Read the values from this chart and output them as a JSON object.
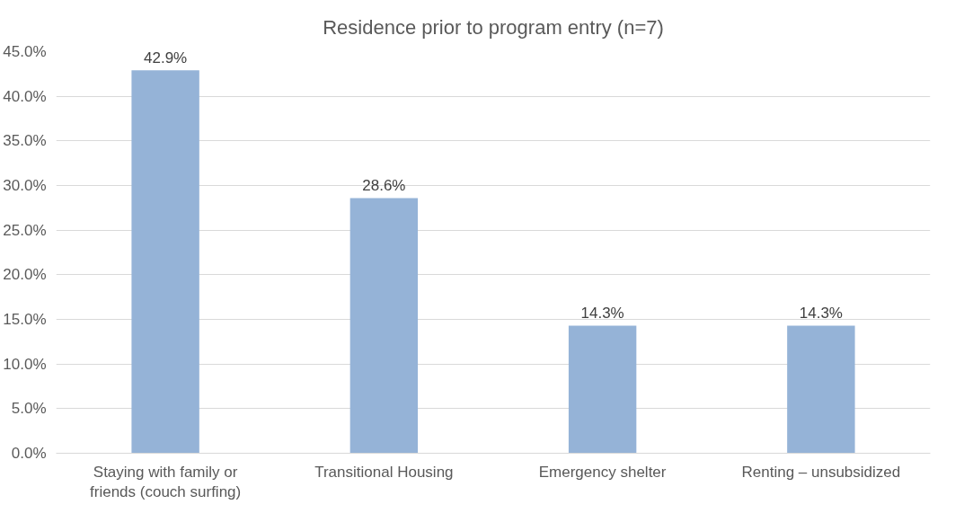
{
  "chart_data": {
    "type": "bar",
    "title": "Residence prior to program entry (n=7)",
    "categories": [
      "Staying with family or friends (couch surfing)",
      "Transitional Housing",
      "Emergency shelter",
      "Renting – unsubsidized"
    ],
    "values": [
      42.9,
      28.6,
      14.3,
      14.3
    ],
    "value_labels": [
      "42.9%",
      "28.6%",
      "14.3%",
      "14.3%"
    ],
    "color": "#95b3d7",
    "ylim": [
      0,
      45
    ],
    "yticks": [
      {
        "value": 0,
        "label": "0.0%"
      },
      {
        "value": 5,
        "label": "5.0%"
      },
      {
        "value": 10,
        "label": "10.0%"
      },
      {
        "value": 15,
        "label": "15.0%"
      },
      {
        "value": 20,
        "label": "20.0%"
      },
      {
        "value": 25,
        "label": "25.0%"
      },
      {
        "value": 30,
        "label": "30.0%"
      },
      {
        "value": 35,
        "label": "35.0%"
      },
      {
        "value": 40,
        "label": "40.0%"
      },
      {
        "value": 45,
        "label": "45.0%"
      }
    ],
    "grid": "y"
  }
}
